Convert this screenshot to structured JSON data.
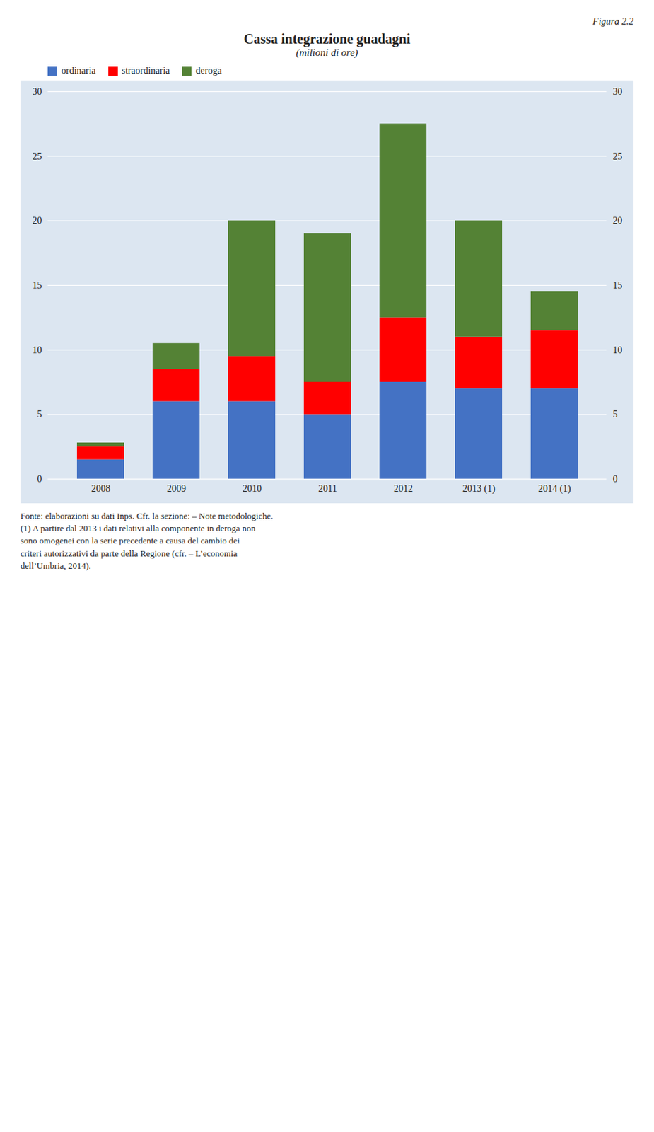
{
  "chart_data": {
    "type": "bar",
    "stacked": true,
    "title": "Cassa integrazione guadagni",
    "subtitle": "(milioni di ore)",
    "annotations": [
      "Figura 2.2",
      "Fonte: elaborazioni su dati Inps. Cfr. la sezione: – Note metodologiche.\n(1) A partire dal 2013 i dati relativi alla componente in deroga non\nsono omogenei con la serie precedente a causa del cambio dei\ncriteri autorizzativi da parte della Regione (cfr. – L’economia\ndell’Umbria, 2014)."
    ],
    "categories": [
      "2008",
      "2009",
      "2010",
      "2011",
      "2012",
      "2013 (1)",
      "2014 (1)"
    ],
    "series": [
      {
        "name": "ordinaria",
        "color": "#4472c4",
        "values": [
          1.5,
          6.0,
          6.0,
          5.0,
          7.5,
          7.0,
          7.0
        ]
      },
      {
        "name": "straordinaria",
        "color": "#ff0000",
        "values": [
          1.0,
          2.5,
          3.5,
          2.5,
          5.0,
          4.0,
          4.5
        ]
      },
      {
        "name": "deroga",
        "color": "#548235",
        "values": [
          0.3,
          2.0,
          10.5,
          11.5,
          15.0,
          9.0,
          3.0
        ]
      }
    ],
    "ylim": [
      0,
      30
    ],
    "yticks": [
      0,
      5,
      10,
      15,
      20,
      25,
      30
    ],
    "grid": true,
    "legend": "upper left"
  }
}
